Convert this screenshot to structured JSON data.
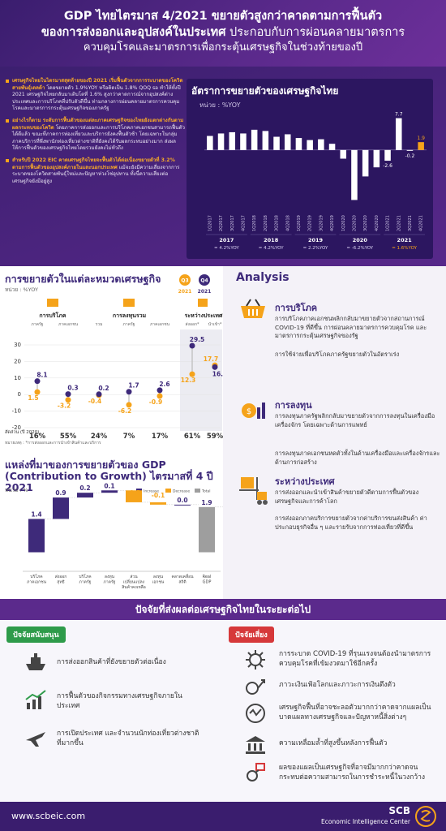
{
  "header": {
    "line1": "GDP ไทยไตรมาส 4/2021 ขยายตัวสูงกว่าคาดตามการฟื้นตัว",
    "line2_bold": "ของการส่งออกและอุปสงค์ในประเทศ",
    "line2_rest": " ประกอบกับการผ่อนคลายมาตรการ",
    "line3": "ควบคุมโรคและมาตรการเพื่อกระตุ้นเศรษฐกิจในช่วงท้ายของปี"
  },
  "bullets": [
    {
      "hl": "เศรษฐกิจไทยในไตรมาสสุดท้ายของปี 2021 เริ่มฟื้นตัวจากการระบาดของโควิดสายพันธุ์เดลต้า",
      "text": " โดยขยายตัว 1.9%YOY หรือคิดเป็น 1.8% QOQ sa ทำให้ทั้งปี 2021 เศรษฐกิจไทยกลับมาเติบโตที่ 1.6% สูงกว่าคาดการณ์จากอุปสงค์ต่างประเทศและการบริโภคที่ปรับตัวดีขึ้น ท่ามกลางการผ่อนคลายมาตรการควบคุมโรคและมาตรการกระตุ้นเศรษฐกิจของภาครัฐ"
    },
    {
      "hl": "อย่างไรก็ตาม ระดับการฟื้นตัวของแต่ละภาคเศรษฐกิจของไทยยังแตกต่างกันตามผลกระทบของโควิด",
      "text": " โดยภาคการส่งออกและการบริโภคภาคเอกชนสามารถฟื้นตัวได้ดีแล้ว ขณะที่ภาคการท่องเที่ยวและบริการยังคงฟื้นตัวช้า โดยเฉพาะในกลุ่มภาคบริการที่พึ่งพานักท่องเที่ยวต่างชาติที่ยังคงได้รับผลกระทบอย่างมาก ส่งผลให้การฟื้นตัวของเศรษฐกิจไทยโดยรวมยังคงไม่ทั่วถึง"
    },
    {
      "hl": "สำหรับปี 2022 EIC คาดเศรษฐกิจไทยจะฟื้นตัวได้ต่อเนื่องขยายตัวที่ 3.2% ตามการฟื้นตัวของอุปสงค์ภายในและนอกประเทศ",
      "text": " แม้จะยังมีความเสี่ยงจากการระบาดของโควิดสายพันธุ์ใหม่และปัญหาห่วงโซ่อุปทาน ทั้งนี้ความเสี่ยงต่อเศรษฐกิจยังมีอยู่สูง"
    }
  ],
  "gdp_chart": {
    "title": "อัตราการขยายตัวของเศรษฐกิจไทย",
    "unit": "หน่วย : %YOY",
    "year_labels": [
      "2017",
      "2018",
      "2019",
      "2020",
      "2021"
    ],
    "year_values": [
      "= 4.2%YOY",
      "= 4.2%YOY",
      "= 2.2%YOY",
      "= -6.2%YOY",
      "= 1.6%YOY"
    ],
    "accent": "#f5a31a",
    "bar_color": "#ffffff"
  },
  "chart_data": [
    {
      "type": "bar",
      "title": "อัตราการขยายตัวของเศรษฐกิจไทย",
      "ylabel": "หน่วย : %YOY",
      "categories": [
        "1Q2017",
        "2Q2017",
        "3Q2017",
        "4Q2017",
        "1Q2018",
        "2Q2018",
        "3Q2018",
        "4Q2018",
        "1Q2019",
        "2Q2019",
        "3Q2019",
        "4Q2019",
        "1Q2020",
        "2Q2020",
        "3Q2020",
        "4Q2020",
        "1Q2021",
        "2Q2021",
        "3Q2021",
        "4Q2021"
      ],
      "values": [
        3.4,
        4.0,
        4.3,
        4.0,
        4.9,
        4.6,
        3.2,
        3.8,
        2.9,
        2.4,
        2.6,
        1.5,
        -2.1,
        -12.1,
        -6.4,
        -4.2,
        -2.6,
        7.7,
        -0.2,
        1.9
      ],
      "data_labels": {
        "1Q2021": "-2.6",
        "2Q2021": "7.7",
        "3Q2021": "-0.2",
        "4Q2021": "1.9"
      },
      "ylim": [
        -13,
        9
      ]
    },
    {
      "type": "line",
      "title": "การขยายตัวในแต่ละหมวดเศรษฐกิจ",
      "ylabel": "หน่วย : %YOY",
      "categories": [
        "ภาครัฐ",
        "ภาคเอกชน",
        "รวม",
        "ภาครัฐ",
        "ภาคเอกชน",
        "ส่งออก",
        "นำเข้า"
      ],
      "groups": [
        "การบริโภค",
        "การลงทุนรวม",
        "ระหว่างประเทศ"
      ],
      "series": [
        {
          "name": "Q3 2021",
          "values": [
            1.5,
            -3.2,
            -0.4,
            -6.2,
            -0.9,
            12.3,
            17.7
          ]
        },
        {
          "name": "Q4 2021",
          "values": [
            8.1,
            0.3,
            0.2,
            1.7,
            2.6,
            29.5,
            16.6
          ]
        }
      ],
      "share_label": "สัดส่วน (ปี 2020)",
      "shares": [
        "16%",
        "55%",
        "24%",
        "7%",
        "17%",
        "61%",
        "59%"
      ],
      "yticks": [
        "30",
        "20",
        "10",
        "0",
        "-10",
        "-20"
      ],
      "ylim": [
        -20,
        30
      ],
      "note": "หมายเหตุ : *การส่งออกและการนำเข้าสินค้าและบริการ"
    },
    {
      "type": "bar",
      "title": "แหล่งที่มาของการขยายตัวของ GDP (Contribution to Growth) ไตรมาสที่ 4 ปี 2021",
      "ylabel": "หน่วย : %",
      "categories": [
        "บริโภคภาคเอกชน",
        "ส่งออกสุทธิ",
        "บริโภคภาครัฐ",
        "ลงทุนภาครัฐ",
        "ส่วนเปลี่ยนแปลงสินค้าคงเหลือ",
        "ลงทุนเอกชน",
        "คลาดเคลื่อนสถิติ",
        "Real GDP"
      ],
      "values": [
        1.4,
        0.9,
        0.2,
        0.1,
        -0.5,
        -0.1,
        0.0,
        1.9
      ],
      "legend": [
        "Increase",
        "Decrease",
        "Total"
      ],
      "colors": {
        "increase": "#3e2a7a",
        "decrease": "#f5a31a",
        "total": "#9e9e9e"
      }
    }
  ],
  "sectoral": {
    "title": "การขยายตัวในแต่ละหมวดเศรษฐกิจ",
    "unit": "หน่วย : %YOY",
    "legend_q3": "Q3",
    "legend_q3_year": "2021",
    "legend_q4": "Q4",
    "legend_q4_year": "2021",
    "group1": "การบริโภค",
    "group2": "การลงทุนรวม",
    "group3": "ระหว่างประเทศ",
    "sub_labels": [
      "ภาครัฐ",
      "ภาคเอกชน",
      "รวม",
      "ภาครัฐ",
      "ภาคเอกชน",
      "ส่งออก*",
      "นำเข้า*"
    ]
  },
  "contrib": {
    "title_line1": "แหล่งที่มาของการขยายตัวของ GDP",
    "title_line2": "(Contribution to Growth) ไตรมาสที่ 4 ปี 2021",
    "unit": "หน่วย : %",
    "cat_labels": [
      [
        "บริโภค",
        "ภาคเอกชน"
      ],
      [
        "ส่งออก",
        "สุทธิ"
      ],
      [
        "บริโภค",
        "ภาครัฐ"
      ],
      [
        "ลงทุน",
        "ภาครัฐ"
      ],
      [
        "ส่วน",
        "เปลี่ยนแปลง",
        "สินค้าคงเหลือ"
      ],
      [
        "ลงทุน",
        "เอกชน"
      ],
      [
        "คลาดเคลื่อน",
        "สถิติ"
      ],
      [
        "Real",
        "GDP"
      ]
    ],
    "value_labels": [
      "1.4",
      "0.9",
      "0.2",
      "0.1",
      "-0.5",
      "-0.1",
      "0.0",
      "1.9"
    ]
  },
  "analysis": {
    "title": "Analysis",
    "items": [
      {
        "heading": "การบริโภค",
        "p1": "การบริโภคภาคเอกชนพลิกกลับมาขยายตัวจากสถานการณ์ COVID-19 ที่ดีขึ้น การผ่อนคลายมาตรการควบคุมโรค และมาตรการกระตุ้นเศรษฐกิจของรัฐ",
        "p2": "การใช้จ่ายเพื่อบริโภคภาครัฐขยายตัวในอัตราเร่ง"
      },
      {
        "heading": "การลงทุน",
        "p1": "การลงทุนภาครัฐพลิกกลับมาขยายตัวจากการลงทุนในเครื่องมือเครื่องจักร โดยเฉพาะด้านการแพทย์",
        "p2": "การลงทุนภาคเอกชนหดตัวทั้งในด้านเครื่องมือและเครื่องจักรและด้านการก่อสร้าง"
      },
      {
        "heading": "ระหว่างประเทศ",
        "p1": "การส่งออกและนำเข้าสินค้าขยายตัวดีตามการฟื้นตัวของเศรษฐกิจและการค้าโลก",
        "p2": "การส่งออกภาคบริการขยายตัวจากค่าบริการขนส่งสินค้า ค่าประกอบธุรกิจอื่น ๆ และรายรับจากการท่องเที่ยวที่ดีขึ้น"
      }
    ]
  },
  "factors": {
    "title": "ปัจจัยที่ส่งผลต่อเศรษฐกิจไทยในระยะต่อไป",
    "support_label": "ปัจจัยสนับสนุน",
    "risk_label": "ปัจจัยเสี่ยง",
    "support": [
      {
        "icon": "ship-icon",
        "text": "การส่งออกสินค้าที่ยังขยายตัวต่อเนื่อง"
      },
      {
        "icon": "growth-chart-icon",
        "text": "การฟื้นตัวของกิจกรรมทางเศรษฐกิจภายในประเทศ"
      },
      {
        "icon": "airplane-icon",
        "text": "การเปิดประเทศ และจำนวนนักท่องเที่ยวต่างชาติที่มากขึ้น"
      }
    ],
    "risk": [
      {
        "icon": "virus-icon",
        "text": "การระบาด COVID-19 ที่รุนแรงจนต้องนำมาตรการควบคุมโรคที่เข้มงวดมาใช้อีกครั้ง"
      },
      {
        "icon": "inflation-icon",
        "text": "ภาวะเงินเฟ้อโลกและภาวะการเงินตึงตัว"
      },
      {
        "icon": "scarring-icon",
        "text": "เศรษฐกิจฟื้นที่อาจชะลอตัวมากกว่าคาดจากแผลเป็นบาดแผลทางเศรษฐกิจและปัญหาหนี้สิ่งต่างๆ"
      },
      {
        "icon": "bank-icon",
        "text": "ความเหลื่อมล้ำที่สูงขึ้นหลังการฟื้นตัว"
      },
      {
        "icon": "debt-chain-icon",
        "text": "ผลของแผลเป็นเศรษฐกิจที่อาจมีมากกว่าคาดจนกระทบต่อความสามารถในการชำระหนี้ในวงกว้าง"
      }
    ],
    "support_color": "#2e9b4a",
    "risk_color": "#d6383a"
  },
  "footer": {
    "url": "www.scbeic.com",
    "brand": "SCB",
    "center": "Economic Intelligence Center"
  }
}
